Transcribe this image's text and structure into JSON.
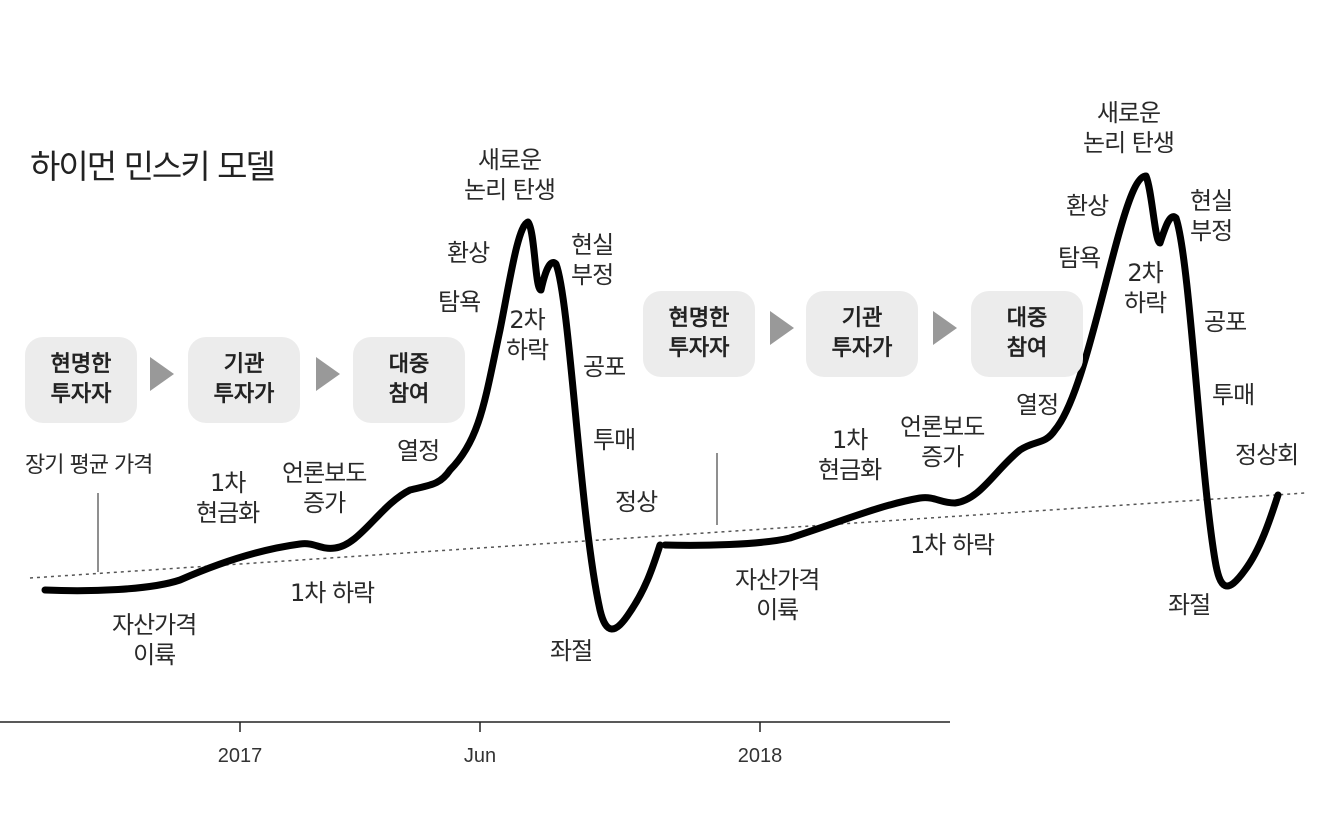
{
  "title": "하이먼 민스키 모델",
  "cycle1": {
    "stages": [
      {
        "line1": "현명한",
        "line2": "투자자"
      },
      {
        "line1": "기관",
        "line2": "투자가"
      },
      {
        "line1": "대중",
        "line2": "참여"
      }
    ],
    "long_term_label": "장기 평균 가격",
    "labels": {
      "asset_rise": [
        "자산가격",
        "이륙"
      ],
      "first_cash": [
        "1차",
        "현금화"
      ],
      "media": [
        "언론보도",
        "증가"
      ],
      "first_drop": "1차 하락",
      "enthusiasm": "열정",
      "greed": "탐욕",
      "illusion": "환상",
      "new_logic": [
        "새로운",
        "논리 탄생"
      ],
      "second_drop": [
        "2차",
        "하락"
      ],
      "denial": [
        "현실",
        "부정"
      ],
      "fear": "공포",
      "sell": "투매",
      "despair": "좌절",
      "normal": "정상"
    }
  },
  "cycle2": {
    "stages": [
      {
        "line1": "현명한",
        "line2": "투자자"
      },
      {
        "line1": "기관",
        "line2": "투자가"
      },
      {
        "line1": "대중",
        "line2": "참여"
      }
    ],
    "labels": {
      "asset_rise": [
        "자산가격",
        "이륙"
      ],
      "first_cash": [
        "1차",
        "현금화"
      ],
      "media": [
        "언론보도",
        "증가"
      ],
      "first_drop": "1차 하락",
      "enthusiasm": "열정",
      "greed": "탐욕",
      "illusion": "환상",
      "new_logic": [
        "새로운",
        "논리 탄생"
      ],
      "second_drop": [
        "2차",
        "하락"
      ],
      "denial": [
        "현실",
        "부정"
      ],
      "fear": "공포",
      "sell": "투매",
      "despair": "좌절",
      "normal": "정상회"
    }
  },
  "axis": {
    "ticks": [
      "2017",
      "Jun",
      "2018"
    ]
  },
  "colors": {
    "curve": "#000000",
    "pill_bg": "#ececec",
    "arrow": "#999999",
    "trend": "#555555"
  }
}
